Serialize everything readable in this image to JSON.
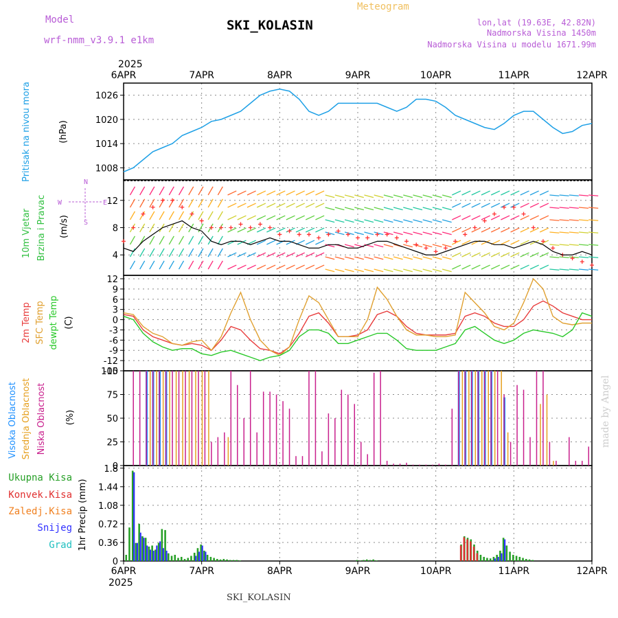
{
  "header": {
    "model_label": "Model",
    "model_name": "wrf-nmm_v3.9.1 e1km",
    "station": "SKI_KOLASIN",
    "product": "Meteogram",
    "lonlat": "lon,lat (19.63E, 42.82N)",
    "elevation": "Nadmorska Visina 1450m",
    "model_elevation": "Nadmorska Visina u modelu 1671.99m",
    "year_top": "2025",
    "year_bottom": "2025",
    "footer_station": "SKI_KOLASIN",
    "watermark": "made by Angel"
  },
  "colors": {
    "pressure": "#1ea0e6",
    "wind_speed": "#000000",
    "gust": "#ff3030",
    "temp2m": "#e83c3c",
    "sfc_temp": "#e0a030",
    "dewpoint": "#28c828",
    "high_cloud": "#1e90ff",
    "mid_cloud": "#e6a020",
    "low_cloud": "#c81e8c",
    "total_precip": "#28a028",
    "conv_precip": "#e03030",
    "frozen_precip": "#f08020",
    "snow": "#3030ff",
    "graupel": "#20c0c0",
    "grid": "#888888"
  },
  "chart_data": [
    {
      "type": "line",
      "panel": "pressure",
      "ylabel_lines": [
        "Pritisak na nivou mora",
        "(hPa)"
      ],
      "yticks": [
        "1008",
        "1014",
        "1020",
        "1026"
      ],
      "ylim": [
        1005,
        1029
      ],
      "x_hours": [
        0,
        3,
        6,
        9,
        12,
        15,
        18,
        21,
        24,
        27,
        30,
        33,
        36,
        39,
        42,
        45,
        48,
        51,
        54,
        57,
        60,
        63,
        66,
        69,
        72,
        75,
        78,
        81,
        84,
        87,
        90,
        93,
        96,
        99,
        102,
        105,
        108,
        111,
        114,
        117,
        120,
        123,
        126,
        129,
        132,
        135,
        138,
        141,
        144
      ],
      "values": [
        1007,
        1008,
        1010,
        1012,
        1013,
        1014,
        1016,
        1017,
        1018,
        1019.5,
        1020,
        1021,
        1022,
        1024,
        1026,
        1027,
        1027.5,
        1027,
        1025,
        1022,
        1021,
        1022,
        1024,
        1024,
        1024,
        1024,
        1024,
        1023,
        1022,
        1023,
        1025,
        1025,
        1024.5,
        1023,
        1021,
        1020,
        1019,
        1018,
        1017.5,
        1019,
        1021,
        1022,
        1022,
        1020,
        1018,
        1016.5,
        1017,
        1018.5,
        1019
      ]
    },
    {
      "type": "line",
      "panel": "wind",
      "ylabel_lines": [
        "10m Vjetar",
        "Brzina i Pravac",
        "(m/s)"
      ],
      "compass": [
        "N",
        "W",
        "E",
        "S"
      ],
      "yticks": [
        "4",
        "8",
        "12"
      ],
      "ylim": [
        1,
        15
      ],
      "x_hours": [
        0,
        3,
        6,
        9,
        12,
        15,
        18,
        21,
        24,
        27,
        30,
        33,
        36,
        39,
        42,
        45,
        48,
        51,
        54,
        57,
        60,
        63,
        66,
        69,
        72,
        75,
        78,
        81,
        84,
        87,
        90,
        93,
        96,
        99,
        102,
        105,
        108,
        111,
        114,
        117,
        120,
        123,
        126,
        129,
        132,
        135,
        138,
        141,
        144
      ],
      "speed": [
        5,
        4.5,
        6,
        7,
        8,
        8.5,
        9,
        8,
        7.5,
        6,
        5.5,
        6,
        6,
        5.5,
        6,
        6.5,
        6,
        6,
        5.5,
        5,
        5,
        5.5,
        5.5,
        5,
        5,
        5.5,
        6,
        6,
        5.5,
        5,
        4.5,
        4,
        4,
        4.5,
        5,
        5.5,
        6,
        6,
        5.5,
        5.5,
        5,
        5.5,
        6,
        5.5,
        4.5,
        4,
        4,
        4.5,
        4
      ],
      "gust": [
        6,
        8,
        10,
        11,
        12,
        12,
        11,
        10,
        9,
        8,
        8,
        8,
        8.5,
        8,
        8.5,
        8,
        7,
        7.5,
        7,
        7,
        6.5,
        7,
        7.5,
        7,
        6.5,
        6.5,
        7,
        7,
        6.5,
        6,
        5.5,
        5,
        4.5,
        5,
        6,
        7,
        8,
        9,
        10,
        11,
        11,
        10,
        8,
        6,
        5,
        4,
        3.5,
        3,
        2.5
      ]
    },
    {
      "type": "line",
      "panel": "temperature",
      "ylabel_lines": [
        "2m Temp",
        "SFC Temp",
        "dewpt Temp",
        "(C)"
      ],
      "yticks": [
        "-15",
        "-12",
        "-9",
        "-6",
        "-3",
        "0",
        "3",
        "6",
        "9",
        "12"
      ],
      "ylim": [
        -15,
        13
      ],
      "x_hours": [
        0,
        3,
        6,
        9,
        12,
        15,
        18,
        21,
        24,
        27,
        30,
        33,
        36,
        39,
        42,
        45,
        48,
        51,
        54,
        57,
        60,
        63,
        66,
        69,
        72,
        75,
        78,
        81,
        84,
        87,
        90,
        93,
        96,
        99,
        102,
        105,
        108,
        111,
        114,
        117,
        120,
        123,
        126,
        129,
        132,
        135,
        138,
        141,
        144
      ],
      "series": [
        {
          "name": "2m Temp",
          "values": [
            1.5,
            1,
            -3,
            -5,
            -6,
            -7,
            -7.5,
            -7,
            -7.5,
            -9,
            -6,
            -2,
            -3,
            -6,
            -8.5,
            -9,
            -10,
            -8,
            -4,
            1,
            2,
            -1,
            -5,
            -5,
            -4.5,
            -3,
            1.5,
            2.5,
            1,
            -2,
            -4,
            -4.5,
            -4.5,
            -4.5,
            -4,
            1,
            2,
            1,
            -1,
            -2,
            -2,
            0,
            4,
            5.5,
            4,
            2,
            1,
            0,
            0
          ]
        },
        {
          "name": "SFC Temp",
          "values": [
            2,
            1.5,
            -2,
            -4,
            -5,
            -7,
            -7.5,
            -6.5,
            -6,
            -9,
            -5,
            2,
            8,
            0,
            -6,
            -9,
            -10.5,
            -8,
            0,
            7,
            5,
            0,
            -5,
            -5,
            -5,
            0,
            9.5,
            6,
            1,
            -3,
            -4.5,
            -4.5,
            -5,
            -5,
            -4.5,
            8,
            5,
            2,
            -2,
            -3,
            -1,
            5,
            12,
            9,
            1,
            -1,
            -1.5,
            -1,
            -1
          ]
        },
        {
          "name": "dewpt Temp",
          "values": [
            1,
            0,
            -4,
            -6.5,
            -8,
            -9,
            -8.5,
            -8.5,
            -10,
            -10.5,
            -9.5,
            -9,
            -10,
            -11,
            -12,
            -11,
            -10.5,
            -9,
            -5,
            -3,
            -3,
            -4,
            -7,
            -7,
            -6,
            -5,
            -4,
            -4,
            -6,
            -8.5,
            -9,
            -9,
            -9,
            -8,
            -7,
            -3,
            -2,
            -4,
            -6,
            -7,
            -6,
            -4,
            -3,
            -3.5,
            -4,
            -5,
            -3,
            2,
            1
          ]
        }
      ]
    },
    {
      "type": "bar",
      "panel": "clouds",
      "ylabel_lines": [
        "Visoka Oblacnost",
        "Srednja Oblacnost",
        "Niska Oblacnost",
        "(%)"
      ],
      "yticks": [
        "0",
        "25",
        "50",
        "75",
        "100"
      ],
      "ylim": [
        0,
        100
      ],
      "series": [
        {
          "name": "Visoka Oblacnost",
          "x_hours": [
            7,
            9,
            11,
            13,
            103,
            105,
            107,
            109,
            111,
            113,
            117
          ],
          "values": [
            100,
            100,
            100,
            100,
            100,
            100,
            100,
            100,
            100,
            100,
            72
          ]
        },
        {
          "name": "Srednja Oblacnost",
          "x_hours": [
            8,
            10,
            12,
            14,
            16,
            18,
            20,
            22,
            24,
            26,
            32,
            104,
            106,
            108,
            110,
            112,
            114,
            116,
            118,
            128,
            130,
            132
          ],
          "values": [
            100,
            100,
            100,
            100,
            100,
            100,
            100,
            100,
            100,
            100,
            30,
            100,
            100,
            100,
            100,
            100,
            100,
            100,
            35,
            65,
            75,
            5
          ]
        },
        {
          "name": "Niska Oblacnost",
          "x_hours": [
            3,
            5,
            7,
            9,
            11,
            13,
            15,
            17,
            19,
            21,
            23,
            25,
            27,
            29,
            31,
            33,
            35,
            37,
            39,
            41,
            43,
            45,
            47,
            49,
            51,
            53,
            55,
            57,
            59,
            61,
            63,
            65,
            67,
            69,
            71,
            73,
            75,
            77,
            79,
            81,
            83,
            85,
            87,
            89,
            91,
            93,
            95,
            97,
            99,
            101,
            103,
            105,
            107,
            109,
            111,
            113,
            115,
            117,
            119,
            121,
            123,
            125,
            127,
            129,
            131,
            133,
            135,
            137,
            139,
            141,
            143
          ],
          "values": [
            100,
            100,
            100,
            100,
            100,
            100,
            100,
            100,
            100,
            100,
            100,
            100,
            25,
            30,
            35,
            100,
            85,
            50,
            100,
            35,
            78,
            78,
            75,
            68,
            60,
            10,
            10,
            100,
            100,
            15,
            55,
            50,
            80,
            75,
            65,
            25,
            12,
            98,
            100,
            5,
            2,
            2,
            3,
            1,
            1,
            1,
            1,
            2,
            1,
            60,
            100,
            100,
            100,
            100,
            100,
            100,
            100,
            75,
            25,
            85,
            80,
            30,
            100,
            100,
            25,
            5,
            0,
            30,
            5,
            5,
            20
          ]
        }
      ]
    },
    {
      "type": "bar",
      "panel": "precipitation",
      "ylabel_lines": [
        "Ukupna Kisa",
        "Konvek.Kisa",
        "Zaledj.Kisa",
        "Snijeg",
        "Grad",
        "1hr Precip (mm)"
      ],
      "legend": [
        "Ukupna Kisa",
        "Konvek.Kisa",
        "Zaledj.Kisa",
        "Snijeg",
        "Grad"
      ],
      "yticks": [
        "0",
        "0.36",
        "0.72",
        "1.08",
        "1.44",
        "1.8"
      ],
      "ylim": [
        0,
        1.85
      ],
      "xticks": [
        "6APR",
        "7APR",
        "8APR",
        "9APR",
        "10APR",
        "11APR",
        "12APR"
      ],
      "xlim": [
        0,
        144
      ],
      "series": [
        {
          "name": "Ukupna Kisa",
          "x_hours": [
            1,
            2,
            3,
            4,
            5,
            6,
            7,
            8,
            9,
            10,
            11,
            12,
            13,
            14,
            15,
            16,
            17,
            18,
            19,
            20,
            21,
            22,
            23,
            24,
            25,
            26,
            27,
            28,
            29,
            30,
            31,
            32,
            33,
            34,
            35,
            36,
            72,
            73,
            74,
            75,
            76,
            77,
            78,
            104,
            105,
            106,
            107,
            108,
            109,
            110,
            111,
            112,
            113,
            114,
            115,
            116,
            117,
            118,
            119,
            120,
            121,
            122,
            123,
            124,
            125,
            126
          ],
          "values": [
            0.12,
            0.65,
            1.75,
            0.35,
            0.72,
            0.48,
            0.45,
            0.28,
            0.3,
            0.22,
            0.35,
            0.62,
            0.6,
            0.15,
            0.1,
            0.12,
            0.06,
            0.08,
            0.04,
            0.06,
            0.1,
            0.16,
            0.25,
            0.32,
            0.2,
            0.12,
            0.08,
            0.06,
            0.04,
            0.03,
            0.04,
            0.03,
            0.02,
            0.02,
            0.02,
            0.01,
            0.02,
            0.01,
            0.02,
            0.03,
            0.02,
            0.03,
            0.01,
            0.32,
            0.48,
            0.45,
            0.42,
            0.32,
            0.2,
            0.12,
            0.08,
            0.06,
            0.05,
            0.08,
            0.12,
            0.2,
            0.45,
            0.3,
            0.18,
            0.12,
            0.1,
            0.08,
            0.06,
            0.04,
            0.03,
            0.02
          ]
        },
        {
          "name": "Konvek.Kisa",
          "x_hours": [
            104,
            105,
            106,
            107,
            108,
            109
          ],
          "values": [
            0.3,
            0.46,
            0.42,
            0.38,
            0.28,
            0.15
          ]
        },
        {
          "name": "Zaledj.Kisa",
          "x_hours": [],
          "values": []
        },
        {
          "name": "Snijeg",
          "x_hours": [
            3,
            4,
            5,
            6,
            7,
            8,
            9,
            10,
            11,
            12,
            13,
            22,
            23,
            24,
            25,
            114,
            115,
            116,
            117
          ],
          "values": [
            1.72,
            0.35,
            0.55,
            0.45,
            0.3,
            0.22,
            0.2,
            0.3,
            0.38,
            0.25,
            0.2,
            0.1,
            0.18,
            0.3,
            0.18,
            0.05,
            0.08,
            0.15,
            0.42
          ]
        },
        {
          "name": "Grad",
          "x_hours": [],
          "values": []
        }
      ]
    }
  ]
}
